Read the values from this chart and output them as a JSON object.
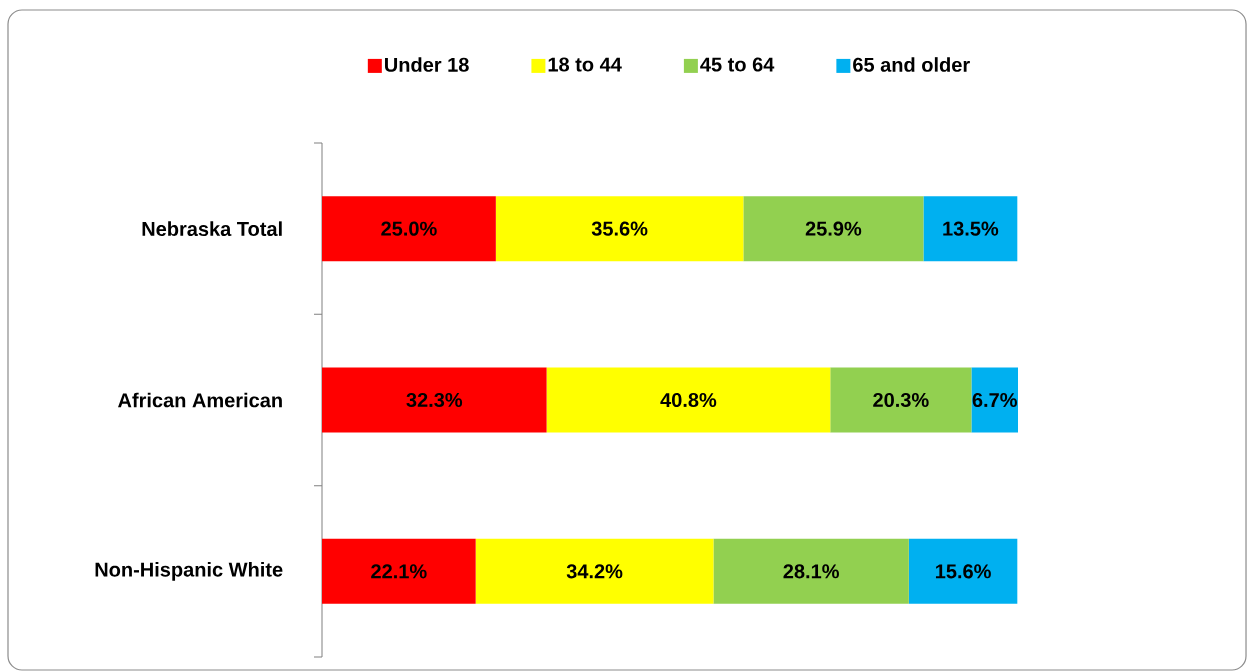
{
  "chart_data": {
    "type": "bar",
    "orientation": "horizontal",
    "stacked": true,
    "legend": "top",
    "tick_labels": "y",
    "categories": [
      "Nebraska Total",
      "African American",
      "Non-Hispanic White"
    ],
    "series": [
      {
        "name": "Under 18",
        "color": "#ff0000",
        "values": [
          25.0,
          32.3,
          22.1
        ],
        "value_labels": [
          "25.0%",
          "32.3%",
          "22.1%"
        ]
      },
      {
        "name": "18 to 44",
        "color": "#ffff00",
        "values": [
          35.6,
          40.8,
          34.2
        ],
        "value_labels": [
          "35.6%",
          "40.8%",
          "34.2%"
        ]
      },
      {
        "name": "45 to 64",
        "color": "#92d050",
        "values": [
          25.9,
          20.3,
          28.1
        ],
        "value_labels": [
          "25.9%",
          "20.3%",
          "28.1%"
        ]
      },
      {
        "name": "65 and older",
        "color": "#00b0f0",
        "values": [
          13.5,
          6.7,
          15.6
        ],
        "value_labels": [
          "13.5%",
          "6.7%",
          "15.6%"
        ]
      }
    ]
  }
}
